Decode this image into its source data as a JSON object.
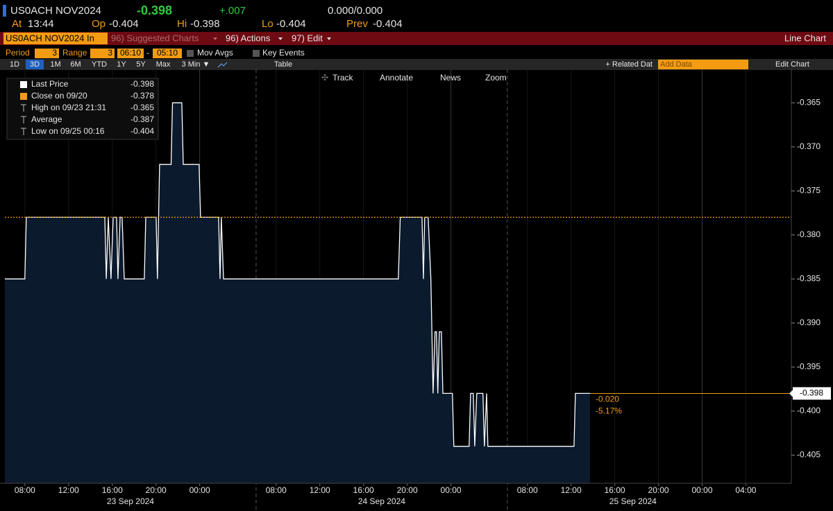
{
  "header": {
    "ticker": "US0ACH NOV2024",
    "last": "-0.398",
    "change": "+.007",
    "bid_ask": "0.000/0.000",
    "quote": [
      {
        "label": "At",
        "value": "13:44"
      },
      {
        "label": "Op",
        "value": "-0.404"
      },
      {
        "label": "Hi",
        "value": "-0.398"
      },
      {
        "label": "Lo",
        "value": "-0.404"
      },
      {
        "label": "Prev",
        "value": "-0.404"
      }
    ]
  },
  "menu": {
    "security": "US0ACH NOV2024 In",
    "items": [
      "96) Suggested Charts",
      "96) Actions",
      "97) Edit"
    ],
    "chart_type": "Line Chart"
  },
  "settings": {
    "period_label": "Period",
    "period": "3",
    "range_label": "Range",
    "range": "3",
    "start": "06:10",
    "separator": "-",
    "end": "05:10",
    "options": [
      "Mov Avgs",
      "Key Events"
    ]
  },
  "toolbar": {
    "periods": [
      "1D",
      "3D",
      "1M",
      "6M",
      "YTD",
      "1Y",
      "5Y",
      "Max",
      "3 Min ▼"
    ],
    "selected": 1,
    "table": "Table",
    "related": "+ Related Dat",
    "add_data": "Add Data",
    "edit_chart": "Edit Chart"
  },
  "chart_tools": [
    "Track",
    "Annotate",
    "News",
    "Zoom"
  ],
  "chart_data": {
    "type": "line",
    "series": [
      {
        "name": "Last Price",
        "color": "#ffffff",
        "x": [
          "2024-09-23 06:10",
          "2024-09-23 08:00",
          "2024-09-23 08:08",
          "2024-09-23 15:19",
          "2024-09-23 15:27",
          "2024-09-23 15:38",
          "2024-09-23 15:53",
          "2024-09-23 16:05",
          "2024-09-23 16:24",
          "2024-09-23 16:31",
          "2024-09-23 16:43",
          "2024-09-23 16:54",
          "2024-09-23 17:06",
          "2024-09-23 18:56",
          "2024-09-23 19:04",
          "2024-09-23 20:01",
          "2024-09-23 20:08",
          "2024-09-23 20:20",
          "2024-09-23 21:23",
          "2024-09-23 21:31",
          "2024-09-23 22:22",
          "2024-09-23 22:30",
          "2024-09-23 23:57",
          "2024-09-24 00:05",
          "2024-09-24 01:44",
          "2024-09-24 01:52",
          "2024-09-24 01:59",
          "2024-09-24 02:11",
          "2024-09-24 19:11",
          "2024-09-24 19:22",
          "2024-09-24 21:21",
          "2024-09-24 21:29",
          "2024-09-24 21:36",
          "2024-09-24 21:55",
          "2024-09-24 22:10",
          "2024-09-24 22:22",
          "2024-09-24 22:33",
          "2024-09-24 22:41",
          "2024-09-24 22:48",
          "2024-09-24 22:56",
          "2024-09-24 23:08",
          "2024-09-24 23:16",
          "2024-09-25 00:08",
          "2024-09-25 00:16",
          "2024-09-25 01:40",
          "2024-09-25 01:48",
          "2024-09-25 02:03",
          "2024-09-25 02:11",
          "2024-09-25 02:22",
          "2024-09-25 02:56",
          "2024-09-25 03:04",
          "2024-09-25 03:16",
          "2024-09-25 03:23",
          "2024-09-25 12:16",
          "2024-09-25 12:24",
          "2024-09-25 13:44"
        ],
        "values": [
          -0.385,
          -0.385,
          -0.378,
          -0.378,
          -0.385,
          -0.378,
          -0.385,
          -0.378,
          -0.378,
          -0.385,
          -0.378,
          -0.378,
          -0.385,
          -0.385,
          -0.378,
          -0.378,
          -0.385,
          -0.372,
          -0.372,
          -0.365,
          -0.365,
          -0.372,
          -0.372,
          -0.378,
          -0.378,
          -0.385,
          -0.378,
          -0.385,
          -0.385,
          -0.378,
          -0.378,
          -0.385,
          -0.378,
          -0.378,
          -0.385,
          -0.398,
          -0.391,
          -0.391,
          -0.398,
          -0.391,
          -0.391,
          -0.398,
          -0.398,
          -0.404,
          -0.404,
          -0.398,
          -0.398,
          -0.404,
          -0.398,
          -0.398,
          -0.404,
          -0.398,
          -0.404,
          -0.404,
          -0.398,
          -0.398
        ]
      }
    ],
    "area_color": "#0b1a2d",
    "last": -0.398,
    "last_color": "#f39c12",
    "stats": [
      {
        "label": "Close on 09/20",
        "value": -0.378,
        "color": "#f39c12"
      },
      {
        "label": "High on 09/23 21:31",
        "value": -0.365
      },
      {
        "label": "Average",
        "value": -0.387
      },
      {
        "label": "Low on 09/25 00:16",
        "value": -0.404
      }
    ],
    "annotations": [
      "-0.020",
      "-5.17%"
    ],
    "xlim": [
      "2024-09-23 06:10",
      "2024-09-26 09:10"
    ],
    "xticks": [
      {
        "value": "2024-09-23 08:00",
        "label": "08:00"
      },
      {
        "value": "2024-09-23 12:00",
        "label": "12:00"
      },
      {
        "value": "2024-09-23 16:00",
        "label": "16:00"
      },
      {
        "value": "2024-09-23 20:00",
        "label": "20:00"
      },
      {
        "value": "2024-09-24 00:00",
        "label": "00:00"
      },
      {
        "value": "2024-09-24 08:00",
        "label": "08:00"
      },
      {
        "value": "2024-09-24 12:00",
        "label": "12:00"
      },
      {
        "value": "2024-09-24 16:00",
        "label": "16:00"
      },
      {
        "value": "2024-09-24 20:00",
        "label": "20:00"
      },
      {
        "value": "2024-09-25 00:00",
        "label": "00:00"
      },
      {
        "value": "2024-09-25 08:00",
        "label": "08:00"
      },
      {
        "value": "2024-09-25 12:00",
        "label": "12:00"
      },
      {
        "value": "2024-09-25 16:00",
        "label": "16:00"
      },
      {
        "value": "2024-09-25 20:00",
        "label": "20:00"
      },
      {
        "value": "2024-09-26 00:00",
        "label": "00:00"
      },
      {
        "value": "2024-09-26 04:00",
        "label": "04:00"
      }
    ],
    "day_labels": [
      "23 Sep 2024",
      "24 Sep 2024",
      "25 Sep 2024"
    ],
    "ylim": [
      -0.4082,
      -0.3612
    ],
    "yticks": [
      -0.365,
      {
        "value": -0.37,
        "label": "-0.370"
      },
      -0.375,
      {
        "value": -0.38,
        "label": "-0.380"
      },
      -0.385,
      {
        "value": -0.39,
        "label": "-0.390"
      },
      -0.395,
      {
        "value": -0.4,
        "label": "-0.400"
      },
      -0.405
    ],
    "grid": true
  }
}
